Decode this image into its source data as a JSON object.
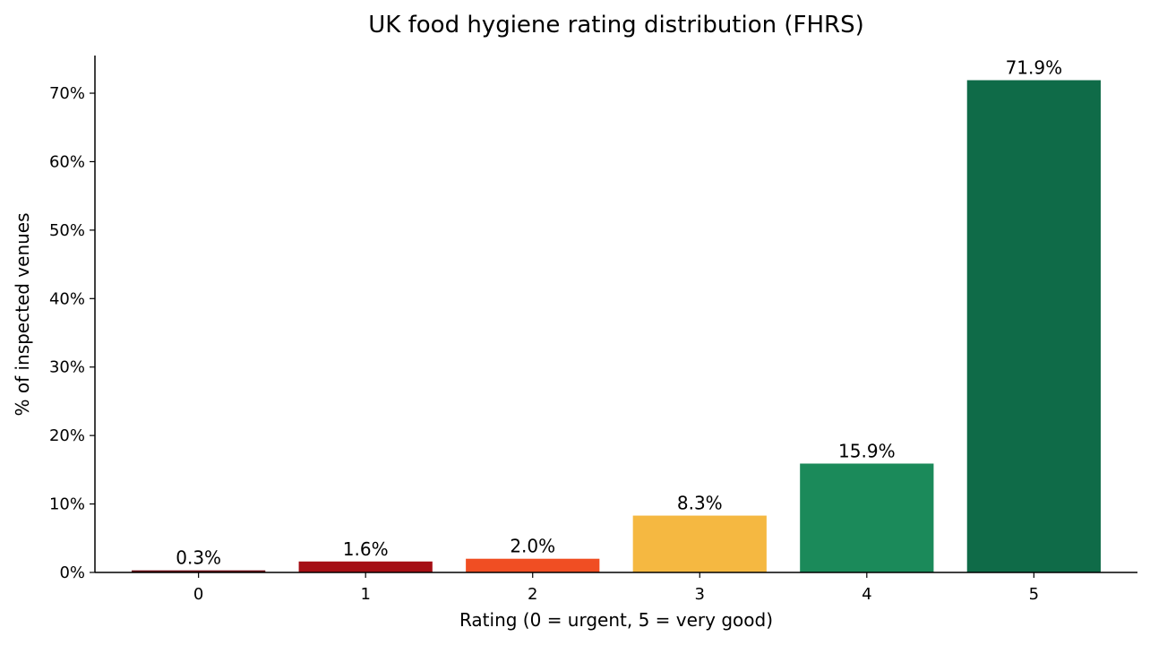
{
  "chart_data": {
    "type": "bar",
    "title": "UK food hygiene rating distribution (FHRS)",
    "xlabel": "Rating (0 = urgent, 5 = very good)",
    "ylabel": "% of inspected venues",
    "categories": [
      "0",
      "1",
      "2",
      "3",
      "4",
      "5"
    ],
    "values": [
      0.3,
      1.6,
      2.0,
      8.3,
      15.9,
      71.9
    ],
    "data_labels": [
      "0.3%",
      "1.6%",
      "2.0%",
      "8.3%",
      "15.9%",
      "71.9%"
    ],
    "colors": [
      "#67000d",
      "#a50f15",
      "#f04e23",
      "#f5b841",
      "#1b8a5a",
      "#0f6b48"
    ],
    "yticks": [
      0,
      10,
      20,
      30,
      40,
      50,
      60,
      70
    ],
    "ytick_labels": [
      "0%",
      "10%",
      "20%",
      "30%",
      "40%",
      "50%",
      "60%",
      "70%"
    ],
    "ylim": [
      0,
      75.5
    ],
    "grid": false,
    "legend": "none"
  }
}
